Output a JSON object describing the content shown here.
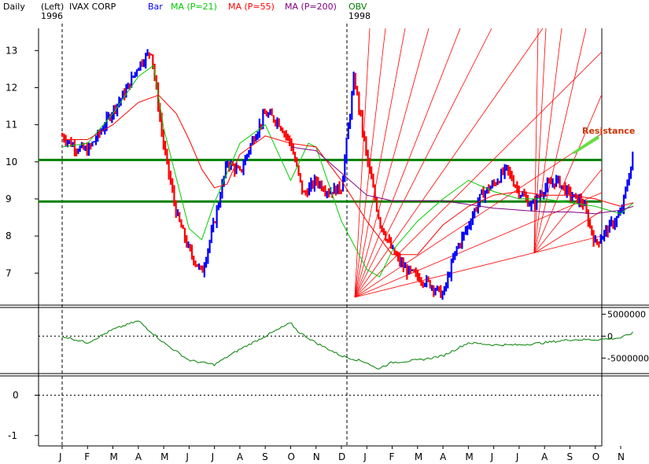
{
  "header": {
    "period": "Daily",
    "scale": "(Left)",
    "year_start": "1996",
    "symbol": "IVAX CORP",
    "bar_label": "Bar",
    "ma21_label": "MA (P=21)",
    "ma55_label": "MA (P=55)",
    "ma200_label": "MA (P=200)",
    "obv_label": "OBV",
    "year_mid": "1998"
  },
  "colors": {
    "bar_up": "#0000ff",
    "bar_down": "#ff0000",
    "ma21": "#00cc00",
    "ma55": "#ff0000",
    "ma200": "#800080",
    "obv": "#008000",
    "support": "#008000",
    "fan": "#ff0000",
    "resistance_text": "#cc3300",
    "resistance_line": "#66dd44"
  },
  "chart_data": [
    {
      "type": "line",
      "title": "IVAX CORP",
      "ylabel": "",
      "ylim": [
        6.2,
        13.6
      ],
      "y_ticks": [
        7,
        8,
        9,
        10,
        11,
        12,
        13
      ],
      "x_months": [
        "J",
        "F",
        "M",
        "A",
        "M",
        "J",
        "J",
        "A",
        "S",
        "O",
        "N",
        "D",
        "J",
        "F",
        "M",
        "A",
        "M",
        "J",
        "J",
        "A",
        "S",
        "O",
        "N"
      ],
      "support_levels": [
        8.93,
        10.05
      ],
      "annotation": "Resistance",
      "series": [
        {
          "name": "Bar",
          "x": [
            0,
            0.5,
            1,
            1.5,
            2,
            2.5,
            3,
            3.5,
            4,
            4.5,
            5,
            5.5,
            6,
            6.5,
            7,
            7.5,
            8,
            8.5,
            9,
            9.5,
            10,
            10.5,
            11,
            11.5,
            12,
            12.5,
            13,
            13.5,
            14,
            14.5,
            15,
            15.5,
            16,
            16.5,
            17,
            17.5,
            18,
            18.5,
            19,
            19.5,
            20,
            20.5,
            21,
            21.5,
            22,
            22.5
          ],
          "values": [
            10.7,
            10.4,
            10.3,
            10.8,
            11.4,
            11.9,
            12.6,
            13.0,
            10.4,
            8.6,
            7.6,
            7.0,
            8.4,
            10.0,
            9.7,
            10.6,
            11.3,
            11.1,
            10.5,
            9.1,
            9.5,
            9.2,
            9.3,
            12.3,
            10.1,
            8.4,
            7.6,
            7.1,
            6.9,
            6.7,
            6.4,
            7.6,
            8.3,
            9.1,
            9.4,
            9.8,
            9.2,
            8.8,
            9.3,
            9.5,
            9.1,
            8.9,
            7.8,
            8.2,
            8.6,
            10.2
          ]
        },
        {
          "name": "MA (P=21)",
          "x": [
            0,
            1,
            2,
            3,
            3.6,
            4,
            5,
            5.5,
            6,
            7,
            8,
            9,
            9.7,
            10,
            11,
            12,
            12.5,
            13,
            14,
            15,
            16,
            17,
            18,
            19,
            20,
            21,
            22,
            22.5
          ],
          "values": [
            10.4,
            10.5,
            11.3,
            12.3,
            12.6,
            10.9,
            8.2,
            7.9,
            8.9,
            10.5,
            11.0,
            9.5,
            10.5,
            10.4,
            8.4,
            7.1,
            6.9,
            7.6,
            8.4,
            9.0,
            9.5,
            9.2,
            9.0,
            9.0,
            8.9,
            8.8,
            8.6,
            8.9
          ]
        },
        {
          "name": "MA (P=55)",
          "x": [
            0,
            1,
            2,
            3,
            3.8,
            4.5,
            5,
            5.5,
            6,
            6.5,
            7,
            8,
            9,
            10,
            11,
            12,
            13,
            14,
            15,
            16,
            17,
            18,
            19,
            20,
            21,
            22,
            22.5
          ],
          "values": [
            10.6,
            10.6,
            11.0,
            11.6,
            11.8,
            11.3,
            10.6,
            9.8,
            9.3,
            9.4,
            10.2,
            10.7,
            10.5,
            10.4,
            9.5,
            8.4,
            7.5,
            7.5,
            8.3,
            8.8,
            9.1,
            9.2,
            9.1,
            9.1,
            9.0,
            8.8,
            8.9
          ]
        },
        {
          "name": "MA (P=200)",
          "x": [
            9,
            10,
            11,
            12,
            13,
            14,
            15,
            16,
            17,
            18,
            19,
            20,
            21,
            22,
            22.5
          ],
          "values": [
            10.4,
            10.3,
            9.7,
            9.1,
            8.95,
            8.95,
            8.95,
            8.85,
            8.75,
            8.7,
            8.65,
            8.65,
            8.6,
            8.7,
            8.8
          ]
        }
      ]
    },
    {
      "type": "line",
      "title": "OBV",
      "ylim": [
        -8000000,
        6000000
      ],
      "y_ticks": [
        "5000000",
        "0",
        "-5000000"
      ],
      "y_tick_values": [
        5000000,
        0,
        -5000000
      ],
      "series": [
        {
          "name": "OBV",
          "x": [
            0,
            1,
            2,
            3,
            4,
            5,
            6,
            7,
            8,
            9,
            9.3,
            10,
            11,
            12,
            12.4,
            13,
            14,
            15,
            16,
            17,
            18,
            19,
            20,
            21,
            22,
            22.5
          ],
          "values": [
            0,
            -1500000,
            1500000,
            3500000,
            -1500000,
            -5500000,
            -6500000,
            -3000000,
            0,
            3000000,
            1000000,
            -1500000,
            -4500000,
            -6000000,
            -7500000,
            -6000000,
            -5500000,
            -4500000,
            -1500000,
            -2000000,
            -2000000,
            -1500000,
            -800000,
            -800000,
            -400000,
            800000
          ]
        }
      ]
    },
    {
      "type": "line",
      "title": "",
      "ylim": [
        -1.2,
        0.4
      ],
      "y_ticks": [
        "0",
        "-1"
      ],
      "y_tick_values": [
        0,
        -1
      ],
      "series": []
    }
  ]
}
